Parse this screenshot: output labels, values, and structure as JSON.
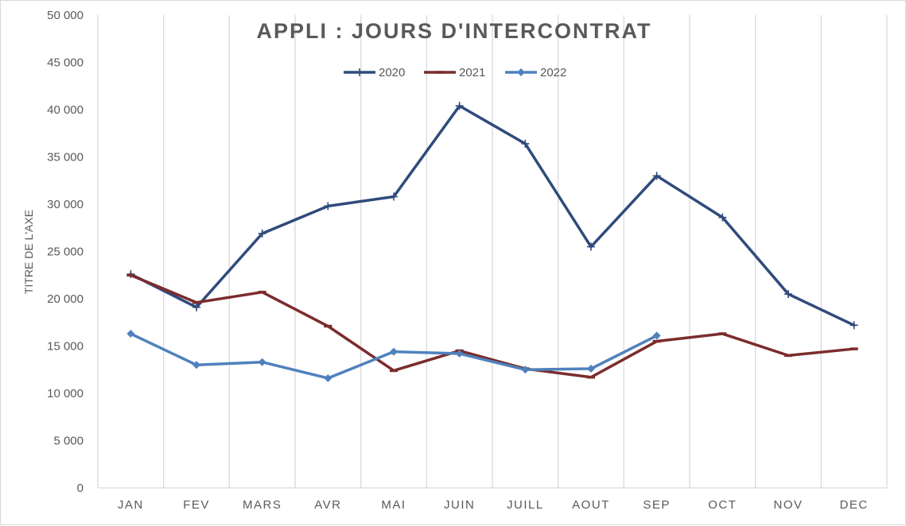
{
  "chart_data": {
    "type": "line",
    "title": "APPLI : JOURS D'INTERCONTRAT",
    "ylabel": "TITRE DE L'AXE",
    "xlabel": "",
    "categories": [
      "JAN",
      "FEV",
      "MARS",
      "AVR",
      "MAI",
      "JUIN",
      "JUILL",
      "AOUT",
      "SEP",
      "OCT",
      "NOV",
      "DEC"
    ],
    "ylim": [
      0,
      50000
    ],
    "yticks": [
      0,
      5000,
      10000,
      15000,
      20000,
      25000,
      30000,
      35000,
      40000,
      45000,
      50000
    ],
    "ytick_labels": [
      "0",
      "5 000",
      "10 000",
      "15 000",
      "20 000",
      "25 000",
      "30 000",
      "35 000",
      "40 000",
      "45 000",
      "50 000"
    ],
    "grid": "vertical",
    "legend_position": "top-center",
    "series": [
      {
        "name": "2020",
        "color": "#2f4b7c",
        "marker": "plus",
        "values": [
          22600,
          19100,
          26900,
          29800,
          30800,
          40400,
          36400,
          25500,
          33000,
          28600,
          20500,
          17200
        ]
      },
      {
        "name": "2021",
        "color": "#7b2c2c",
        "marker": "dash",
        "values": [
          22500,
          19600,
          20700,
          17100,
          12400,
          14500,
          12600,
          11700,
          15500,
          16300,
          14000,
          14700
        ]
      },
      {
        "name": "2022",
        "color": "#4f81bd",
        "marker": "diamond",
        "values": [
          16300,
          13000,
          13300,
          11600,
          14400,
          14200,
          12500,
          12600,
          16100,
          null,
          null,
          null
        ]
      }
    ]
  }
}
